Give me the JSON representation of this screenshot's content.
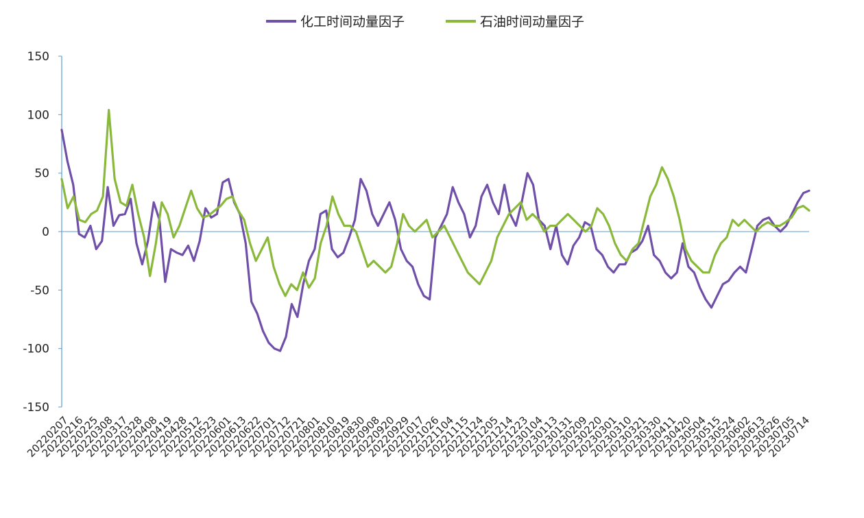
{
  "chart_data": {
    "type": "line",
    "title": "",
    "xlabel": "",
    "ylabel": "",
    "ylim": [
      -150,
      150
    ],
    "yticks": [
      150,
      100,
      50,
      0,
      -50,
      -100,
      -150
    ],
    "ytick_labels": [
      "150",
      "100",
      "50",
      "0",
      "-50",
      "-100",
      "-150"
    ],
    "grid": false,
    "legend_position": "top-center",
    "x_tick_labels": [
      "20220207",
      "20220216",
      "20220225",
      "20220308",
      "20220317",
      "20220328",
      "20220408",
      "20220419",
      "20220428",
      "20220512",
      "20220523",
      "20220601",
      "20220613",
      "20220622",
      "20220701",
      "20220712",
      "20220721",
      "20220801",
      "20220810",
      "20220819",
      "20220830",
      "20220908",
      "20220920",
      "20220929",
      "20221017",
      "20221026",
      "20221104",
      "20221115",
      "20221124",
      "20221205",
      "20221214",
      "20221223",
      "20230104",
      "20230113",
      "20230131",
      "20230209",
      "20230220",
      "20230301",
      "20230310",
      "20230321",
      "20230330",
      "20230411",
      "20230420",
      "20230504",
      "20230515",
      "20230524",
      "20230602",
      "20230613",
      "20230626",
      "20230705",
      "20230714"
    ],
    "series": [
      {
        "name": "化工时间动量因子",
        "color": "#6f4fa8",
        "values": [
          87,
          60,
          40,
          -2,
          -5,
          5,
          -15,
          -8,
          38,
          5,
          14,
          15,
          28,
          -10,
          -28,
          -8,
          25,
          10,
          -43,
          -15,
          -18,
          -20,
          -12,
          -25,
          -8,
          20,
          12,
          15,
          42,
          45,
          25,
          15,
          -10,
          -60,
          -70,
          -85,
          -95,
          -100,
          -102,
          -90,
          -62,
          -73,
          -45,
          -25,
          -15,
          15,
          18,
          -15,
          -22,
          -18,
          -5,
          10,
          45,
          35,
          15,
          5,
          15,
          25,
          10,
          -15,
          -25,
          -30,
          -45,
          -55,
          -58,
          -5,
          5,
          15,
          38,
          25,
          15,
          -5,
          5,
          30,
          40,
          25,
          15,
          40,
          15,
          5,
          25,
          50,
          40,
          10,
          5,
          -15,
          5,
          -20,
          -28,
          -12,
          -5,
          8,
          5,
          -15,
          -20,
          -30,
          -35,
          -28,
          -28,
          -18,
          -15,
          -8,
          5,
          -20,
          -25,
          -35,
          -40,
          -35,
          -10,
          -30,
          -35,
          -48,
          -58,
          -65,
          -55,
          -45,
          -42,
          -35,
          -30,
          -35,
          -15,
          5,
          10,
          12,
          5,
          0,
          5,
          15,
          25,
          33,
          35
        ]
      },
      {
        "name": "石油时间动量因子",
        "color": "#8ab83a",
        "values": [
          45,
          20,
          30,
          10,
          8,
          15,
          18,
          30,
          104,
          45,
          25,
          22,
          40,
          15,
          -5,
          -38,
          -10,
          25,
          15,
          -5,
          5,
          20,
          35,
          20,
          12,
          14,
          18,
          22,
          28,
          30,
          18,
          10,
          -10,
          -25,
          -15,
          -5,
          -30,
          -45,
          -55,
          -45,
          -50,
          -35,
          -48,
          -40,
          -10,
          5,
          30,
          15,
          5,
          5,
          0,
          -15,
          -30,
          -25,
          -30,
          -35,
          -30,
          -10,
          15,
          5,
          0,
          5,
          10,
          -5,
          0,
          5,
          -5,
          -15,
          -25,
          -35,
          -40,
          -45,
          -35,
          -25,
          -5,
          5,
          15,
          20,
          25,
          10,
          15,
          10,
          0,
          5,
          5,
          10,
          15,
          10,
          5,
          0,
          5,
          20,
          15,
          5,
          -10,
          -20,
          -25,
          -15,
          -10,
          10,
          30,
          40,
          55,
          45,
          30,
          10,
          -15,
          -25,
          -30,
          -35,
          -35,
          -20,
          -10,
          -5,
          10,
          5,
          10,
          5,
          0,
          5,
          8,
          5,
          5,
          8,
          12,
          20,
          22,
          18
        ]
      }
    ]
  }
}
